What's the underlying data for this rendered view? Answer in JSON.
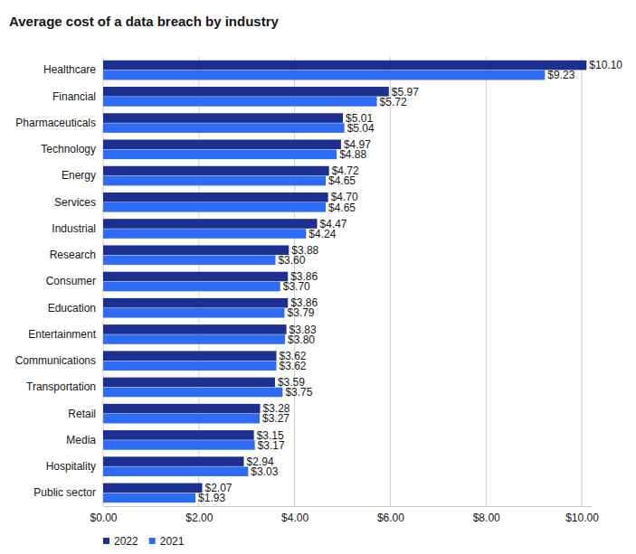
{
  "chart_data": {
    "type": "bar",
    "title": "Average cost of a data breach by industry",
    "orientation": "horizontal",
    "grid": true,
    "data_labels": true,
    "legend": "bottom-left",
    "categories": [
      "Healthcare",
      "Financial",
      "Pharmaceuticals",
      "Technology",
      "Energy",
      "Services",
      "Industrial",
      "Research",
      "Consumer",
      "Education",
      "Entertainment",
      "Communications",
      "Transportation",
      "Retail",
      "Media",
      "Hospitality",
      "Public sector"
    ],
    "series": [
      {
        "name": "2022",
        "color": "#1d2f8f",
        "values": [
          10.1,
          5.97,
          5.01,
          4.97,
          4.72,
          4.7,
          4.47,
          3.88,
          3.86,
          3.86,
          3.83,
          3.62,
          3.59,
          3.28,
          3.15,
          2.94,
          2.07
        ],
        "value_labels": [
          "$10.10",
          "$5.97",
          "$5.01",
          "$4.97",
          "$4.72",
          "$4.70",
          "$4.47",
          "$3.88",
          "$3.86",
          "$3.86",
          "$3.83",
          "$3.62",
          "$3.59",
          "$3.28",
          "$3.15",
          "$2.94",
          "$2.07"
        ]
      },
      {
        "name": "2021",
        "color": "#2e6cf6",
        "values": [
          9.23,
          5.72,
          5.04,
          4.88,
          4.65,
          4.65,
          4.24,
          3.6,
          3.7,
          3.79,
          3.8,
          3.62,
          3.75,
          3.27,
          3.17,
          3.03,
          1.93
        ],
        "value_labels": [
          "$9.23",
          "$5.72",
          "$5.04",
          "$4.88",
          "$4.65",
          "$4.65",
          "$4.24",
          "$3.60",
          "$3.70",
          "$3.79",
          "$3.80",
          "$3.62",
          "$3.75",
          "$3.27",
          "$3.17",
          "$3.03",
          "$1.93"
        ]
      }
    ],
    "xlim": [
      0,
      10.2
    ],
    "xticks": [
      {
        "value": 0,
        "label": "$0.00"
      },
      {
        "value": 2,
        "label": "$2.00"
      },
      {
        "value": 4,
        "label": "$4.00"
      },
      {
        "value": 6,
        "label": "$6.00"
      },
      {
        "value": 8,
        "label": "$8.00"
      },
      {
        "value": 10,
        "label": "$10.00"
      }
    ]
  }
}
